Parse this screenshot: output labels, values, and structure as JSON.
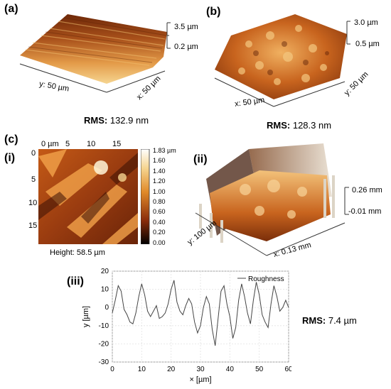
{
  "panel_a": {
    "label": "(a)",
    "z_top": "3.5 µm",
    "z_bottom": "0.2 µm",
    "y_axis": "y: 50 µm",
    "x_axis": "x: 50 µm",
    "rms_label": "RMS:",
    "rms_value": "132.9 nm"
  },
  "panel_b": {
    "label": "(b)",
    "z_top": "3.0 µm",
    "z_bottom": "0.5 µm",
    "y_axis": "y: 50 µm",
    "x_axis": "x: 50 µm",
    "rms_label": "RMS:",
    "rms_value": "128.3 nm"
  },
  "panel_c": {
    "label": "(c)",
    "sub_i": "(i)",
    "sub_ii": "(ii)",
    "sub_iii": "(iii)",
    "map_top_ticks": [
      "0 µm",
      "5",
      "10",
      "15"
    ],
    "map_left_ticks": [
      "0",
      "5",
      "10",
      "15"
    ],
    "colorbar_ticks": [
      "1.83 µm",
      "1.60",
      "1.40",
      "1.20",
      "1.00",
      "0.80",
      "0.60",
      "0.40",
      "0.20",
      "0.00"
    ],
    "height_caption": "Height: 58.5 µm",
    "ii_z_top": "0.26 mm",
    "ii_z_bottom": "-0.01 mm",
    "ii_y_axis": "y: 100 µm",
    "ii_x_axis": "x: 0.13 mm",
    "rms_label": "RMS:",
    "rms_value": "7.4 µm"
  },
  "colors": {
    "surface_dark": "#7a2e0a",
    "surface_mid": "#c8641e",
    "surface_light": "#f0c070",
    "line": "#444444"
  },
  "chart_data": {
    "type": "line",
    "xlabel": "× [µm]",
    "ylabel": "y [µm]",
    "xlim": [
      0,
      60
    ],
    "ylim": [
      -30,
      20
    ],
    "x_ticks": [
      0,
      10,
      20,
      30,
      40,
      50,
      60
    ],
    "y_ticks": [
      20,
      10,
      0,
      -10,
      -20,
      -30
    ],
    "grid": true,
    "legend_position": "top-right",
    "series": [
      {
        "name": "Roughness",
        "x": [
          0,
          1,
          2,
          3,
          4,
          5,
          6,
          7,
          8,
          9,
          10,
          11,
          12,
          13,
          14,
          15,
          16,
          17,
          18,
          19,
          20,
          21,
          22,
          23,
          24,
          25,
          26,
          27,
          28,
          29,
          30,
          31,
          32,
          33,
          34,
          35,
          36,
          37,
          38,
          39,
          40,
          41,
          42,
          43,
          44,
          45,
          46,
          47,
          48,
          49,
          50,
          51,
          52,
          53,
          54,
          55,
          56,
          57,
          58,
          59,
          60
        ],
        "y": [
          -3,
          4,
          12,
          9,
          -1,
          -4,
          -8,
          -9,
          -3,
          6,
          13,
          7,
          -2,
          -5,
          -2,
          1,
          -6,
          -5,
          -3,
          2,
          10,
          15,
          3,
          -2,
          -4,
          1,
          5,
          2,
          -8,
          -14,
          -10,
          0,
          6,
          2,
          -12,
          -21,
          -6,
          9,
          12,
          2,
          -5,
          -17,
          -11,
          4,
          13,
          6,
          -3,
          -9,
          4,
          14,
          7,
          -4,
          -8,
          -11,
          2,
          12,
          6,
          -2,
          0,
          4,
          0
        ]
      }
    ]
  }
}
